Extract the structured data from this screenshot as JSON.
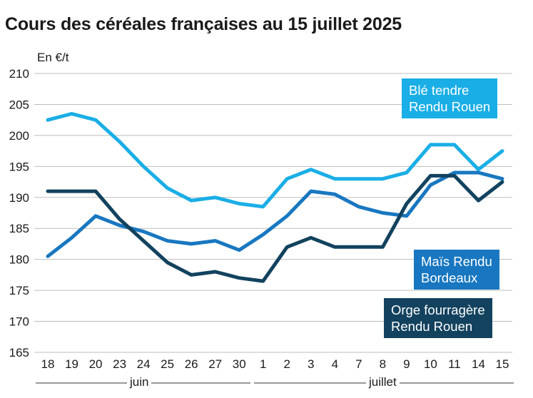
{
  "chart_data": {
    "type": "line",
    "title": "Cours des céréales françaises au 15 juillet 2025",
    "ylabel": "En €/t",
    "ylim": [
      165,
      210
    ],
    "yticks": [
      165,
      170,
      175,
      180,
      185,
      190,
      195,
      200,
      205,
      210
    ],
    "categories": [
      "18",
      "19",
      "20",
      "23",
      "24",
      "25",
      "26",
      "27",
      "30",
      "1",
      "2",
      "3",
      "4",
      "7",
      "8",
      "9",
      "10",
      "11",
      "14",
      "15"
    ],
    "months": [
      "juin",
      "juillet"
    ],
    "grid": true,
    "series": [
      {
        "name": "Blé tendre Rendu Rouen",
        "label_lines": [
          "Blé tendre",
          "Rendu Rouen"
        ],
        "color": "#1aaee6",
        "values": [
          202.5,
          203.5,
          202.5,
          199,
          195,
          191.5,
          189.5,
          190,
          189,
          188.5,
          193,
          194.5,
          193,
          193,
          193,
          194,
          198.5,
          198.5,
          194.5,
          197.5
        ]
      },
      {
        "name": "Maïs Rendu Bordeaux",
        "label_lines": [
          "Maïs Rendu",
          "Bordeaux"
        ],
        "color": "#1877c0",
        "values": [
          180.5,
          183.5,
          187,
          185.5,
          184.5,
          183,
          182.5,
          183,
          181.5,
          184,
          187,
          191,
          190.5,
          188.5,
          187.5,
          187,
          192,
          194,
          194,
          193
        ]
      },
      {
        "name": "Orge fourragère Rendu Rouen",
        "label_lines": [
          "Orge fourragère",
          "Rendu Rouen"
        ],
        "color": "#12425e",
        "values": [
          191,
          191,
          191,
          186.5,
          183,
          179.5,
          177.5,
          178,
          177,
          176.5,
          182,
          183.5,
          182,
          182,
          182,
          189,
          193.5,
          193.5,
          189.5,
          192.5
        ]
      }
    ]
  }
}
